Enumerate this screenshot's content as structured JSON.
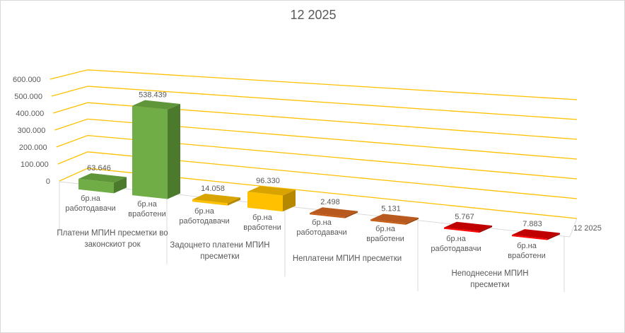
{
  "chart_data": {
    "type": "bar",
    "title": "12 2025",
    "categories": [
      {
        "group": "Платени МПИН пресметки во законскиот рок",
        "group_lines": [
          "Платени МПИН пресметки во",
          "законскиот рок"
        ],
        "items": [
          {
            "label_lines": [
              "бр.на",
              "работодавачи"
            ],
            "value": 63646,
            "value_label": "63.646"
          },
          {
            "label_lines": [
              "бр.на",
              "вработени"
            ],
            "value": 538439,
            "value_label": "538.439"
          }
        ],
        "color": "#70AD47",
        "side": "#4B7A2D",
        "top": "#5F963A"
      },
      {
        "group": "Задоцнето платени МПИН пресметки",
        "group_lines": [
          "Задоцнето платени МПИН",
          "пресметки"
        ],
        "items": [
          {
            "label_lines": [
              "бр.на",
              "работодавачи"
            ],
            "value": 14058,
            "value_label": "14.058"
          },
          {
            "label_lines": [
              "бр.на",
              "вработени"
            ],
            "value": 96330,
            "value_label": "96.330"
          }
        ],
        "color": "#FFC000",
        "side": "#B58800",
        "top": "#D9A300"
      },
      {
        "group": "Неплатени МПИН пресметки",
        "group_lines": [
          "Неплатени МПИН пресметки"
        ],
        "items": [
          {
            "label_lines": [
              "бр.на",
              "работодавачи"
            ],
            "value": 2498,
            "value_label": "2.498"
          },
          {
            "label_lines": [
              "бр.на",
              "вработени"
            ],
            "value": 5131,
            "value_label": "5.131"
          }
        ],
        "color": "#C55A11",
        "side": "#9E470C",
        "top": "#B85A20"
      },
      {
        "group": "Неподнесени МПИН пресметки",
        "group_lines": [
          "Неподнесени МПИН",
          "пресметки"
        ],
        "items": [
          {
            "label_lines": [
              "бр.на",
              "работодавачи"
            ],
            "value": 5767,
            "value_label": "5.767"
          },
          {
            "label_lines": [
              "бр.на",
              "вработени"
            ],
            "value": 7883,
            "value_label": "7.883"
          }
        ],
        "color": "#FF0000",
        "side": "#A00000",
        "top": "#C00000"
      }
    ],
    "series_name": "12 2025",
    "y_ticks": [
      "0",
      "100.000",
      "200.000",
      "300.000",
      "400.000",
      "500.000",
      "600.000"
    ],
    "ylim": [
      0,
      600000
    ],
    "gridline_color": "#FFC000",
    "grid": true
  }
}
